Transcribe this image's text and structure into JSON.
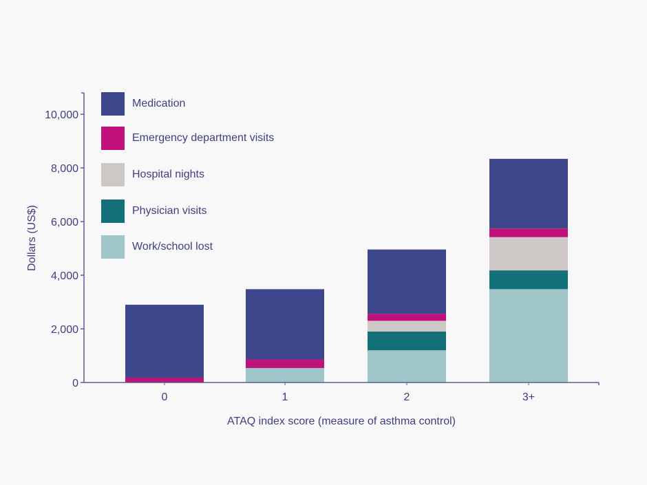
{
  "chart_data": {
    "type": "bar",
    "stacked": true,
    "categories": [
      "0",
      "1",
      "2",
      "3+"
    ],
    "series": [
      {
        "name": "Work/school lost",
        "color": "#a1c6ca",
        "values": [
          0,
          540,
          1200,
          3480
        ]
      },
      {
        "name": "Physician visits",
        "color": "#137078",
        "values": [
          0,
          0,
          700,
          700
        ]
      },
      {
        "name": "Hospital nights",
        "color": "#cdc8c6",
        "values": [
          0,
          0,
          400,
          1240
        ]
      },
      {
        "name": "Emergency department visits",
        "color": "#c0117a",
        "values": [
          180,
          320,
          260,
          320
        ]
      },
      {
        "name": "Medication",
        "color": "#3f478c",
        "values": [
          2720,
          2620,
          2400,
          2600
        ]
      }
    ],
    "legend_order": [
      "Medication",
      "Emergency department visits",
      "Hospital nights",
      "Physician visits",
      "Work/school lost"
    ],
    "xlabel": "ATAQ index score (measure of asthma control)",
    "ylabel": "Dollars (US$)",
    "ylim": [
      0,
      10800
    ],
    "yticks": [
      {
        "value": 0,
        "label": "0"
      },
      {
        "value": 2000,
        "label": "2,000"
      },
      {
        "value": 4000,
        "label": "4,000"
      },
      {
        "value": 6000,
        "label": "6,000"
      },
      {
        "value": 8000,
        "label": "8,000"
      },
      {
        "value": 10000,
        "label": "10,000"
      }
    ],
    "grid": false,
    "legend_position": "top-left",
    "axis_color": "#5a5c95",
    "text_color": "#3d3f80"
  }
}
